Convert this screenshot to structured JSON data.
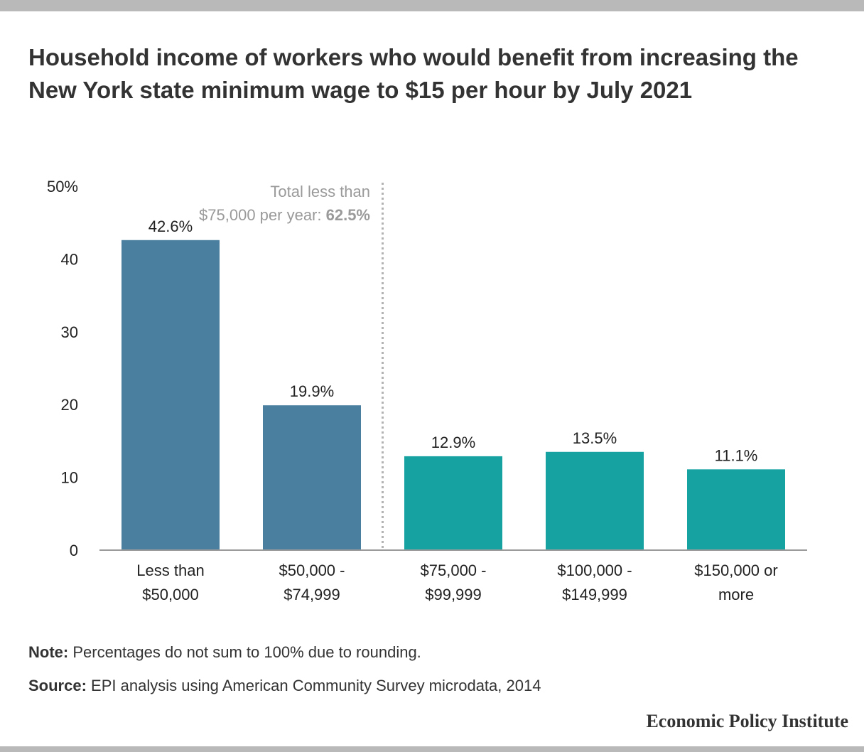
{
  "title": "Household income of workers who would benefit from increasing the New York state minimum wage to $15 per hour by July 2021",
  "colors": {
    "bar_below_75k": "#4a7fa0",
    "bar_above_75k": "#17a2a2",
    "frame": "#b9b9b9",
    "annotation": "#9a9a9a"
  },
  "chart_data": {
    "type": "bar",
    "categories": [
      [
        "Less than",
        "$50,000"
      ],
      [
        "$50,000 -",
        "$74,999"
      ],
      [
        "$75,000 -",
        "$99,999"
      ],
      [
        "$100,000 -",
        "$149,999"
      ],
      [
        "$150,000 or",
        "more"
      ]
    ],
    "values": [
      42.6,
      19.9,
      12.9,
      13.5,
      11.1
    ],
    "value_labels": [
      "42.6%",
      "19.9%",
      "12.9%",
      "13.5%",
      "11.1%"
    ],
    "bar_groups": [
      "below_75k",
      "below_75k",
      "above_75k",
      "above_75k",
      "above_75k"
    ],
    "ylim": [
      0,
      50
    ],
    "yticks": [
      0,
      10,
      20,
      30,
      40,
      50
    ],
    "ytick_labels": [
      "0",
      "10",
      "20",
      "30",
      "40",
      "50%"
    ],
    "xlabel": "",
    "ylabel": "",
    "grid": false,
    "annotation": {
      "line1": "Total less than",
      "line2_prefix": "$75,000 per year: ",
      "line2_value": "62.5%"
    }
  },
  "footer": {
    "note_label": "Note:",
    "note_text": "Percentages do not sum to 100% due to rounding.",
    "source_label": "Source:",
    "source_text": "EPI analysis using American Community Survey microdata, 2014",
    "brand": "Economic Policy Institute"
  }
}
